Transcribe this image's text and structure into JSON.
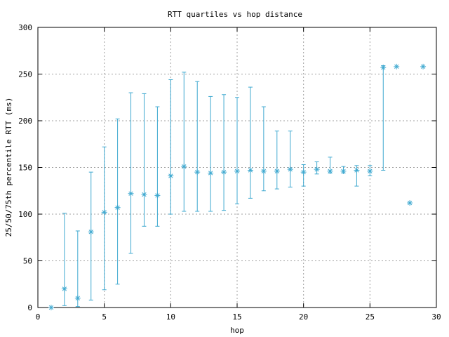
{
  "chart_data": {
    "type": "scatter",
    "title": "RTT quartiles vs hop distance",
    "xlabel": "hop",
    "ylabel": "25/50/75th percentile RTT (ms)",
    "xlim": [
      0,
      30
    ],
    "ylim": [
      0,
      300
    ],
    "x_ticks": [
      0,
      5,
      10,
      15,
      20,
      25,
      30
    ],
    "y_ticks": [
      0,
      50,
      100,
      150,
      200,
      250,
      300
    ],
    "grid": true,
    "series_color": "#3fa9d0",
    "points": [
      {
        "hop": 1,
        "p25": 0,
        "p50": 0,
        "p75": 0
      },
      {
        "hop": 2,
        "p25": 2,
        "p50": 20,
        "p75": 101
      },
      {
        "hop": 3,
        "p25": 1,
        "p50": 10,
        "p75": 82
      },
      {
        "hop": 4,
        "p25": 8,
        "p50": 81,
        "p75": 145
      },
      {
        "hop": 5,
        "p25": 19,
        "p50": 102,
        "p75": 172
      },
      {
        "hop": 6,
        "p25": 25,
        "p50": 107,
        "p75": 202
      },
      {
        "hop": 7,
        "p25": 58,
        "p50": 122,
        "p75": 230
      },
      {
        "hop": 8,
        "p25": 87,
        "p50": 121,
        "p75": 229
      },
      {
        "hop": 9,
        "p25": 87,
        "p50": 120,
        "p75": 215
      },
      {
        "hop": 10,
        "p25": 100,
        "p50": 141,
        "p75": 244
      },
      {
        "hop": 11,
        "p25": 103,
        "p50": 151,
        "p75": 252
      },
      {
        "hop": 12,
        "p25": 103,
        "p50": 145,
        "p75": 242
      },
      {
        "hop": 13,
        "p25": 103,
        "p50": 144,
        "p75": 226
      },
      {
        "hop": 14,
        "p25": 104,
        "p50": 145,
        "p75": 228
      },
      {
        "hop": 15,
        "p25": 111,
        "p50": 146,
        "p75": 225
      },
      {
        "hop": 16,
        "p25": 117,
        "p50": 147,
        "p75": 236
      },
      {
        "hop": 17,
        "p25": 125,
        "p50": 146,
        "p75": 215
      },
      {
        "hop": 18,
        "p25": 127,
        "p50": 146,
        "p75": 189
      },
      {
        "hop": 19,
        "p25": 129,
        "p50": 148,
        "p75": 189
      },
      {
        "hop": 20,
        "p25": 130,
        "p50": 145,
        "p75": 153
      },
      {
        "hop": 21,
        "p25": 143,
        "p50": 148,
        "p75": 156
      },
      {
        "hop": 22,
        "p25": 144,
        "p50": 146,
        "p75": 161
      },
      {
        "hop": 23,
        "p25": 144,
        "p50": 146,
        "p75": 151
      },
      {
        "hop": 24,
        "p25": 130,
        "p50": 147,
        "p75": 152
      },
      {
        "hop": 25,
        "p25": 141,
        "p50": 146,
        "p75": 152
      },
      {
        "hop": 26,
        "p25": 147,
        "p50": 257,
        "p75": 259
      },
      {
        "hop": 27,
        "p25": 258,
        "p50": 258,
        "p75": 258
      },
      {
        "hop": 28,
        "p25": 112,
        "p50": 112,
        "p75": 112
      },
      {
        "hop": 29,
        "p25": 258,
        "p50": 258,
        "p75": 258
      }
    ]
  }
}
